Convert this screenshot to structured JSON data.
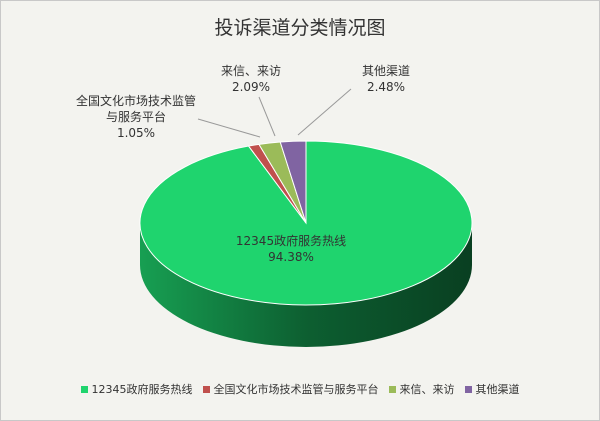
{
  "chart_data": {
    "type": "pie",
    "title": "投诉渠道分类情况图",
    "categories": [
      "12345政府服务热线",
      "全国文化市场技术监管与服务平台",
      "来信、来访",
      "其他渠道"
    ],
    "values": [
      94.38,
      1.05,
      2.09,
      2.48
    ],
    "value_labels": [
      "94.38%",
      "1.05%",
      "2.09%",
      "2.48%"
    ],
    "colors": [
      "#1fd46e",
      "#c0504d",
      "#9bbb59",
      "#8064a2"
    ],
    "legend": "bottom"
  }
}
